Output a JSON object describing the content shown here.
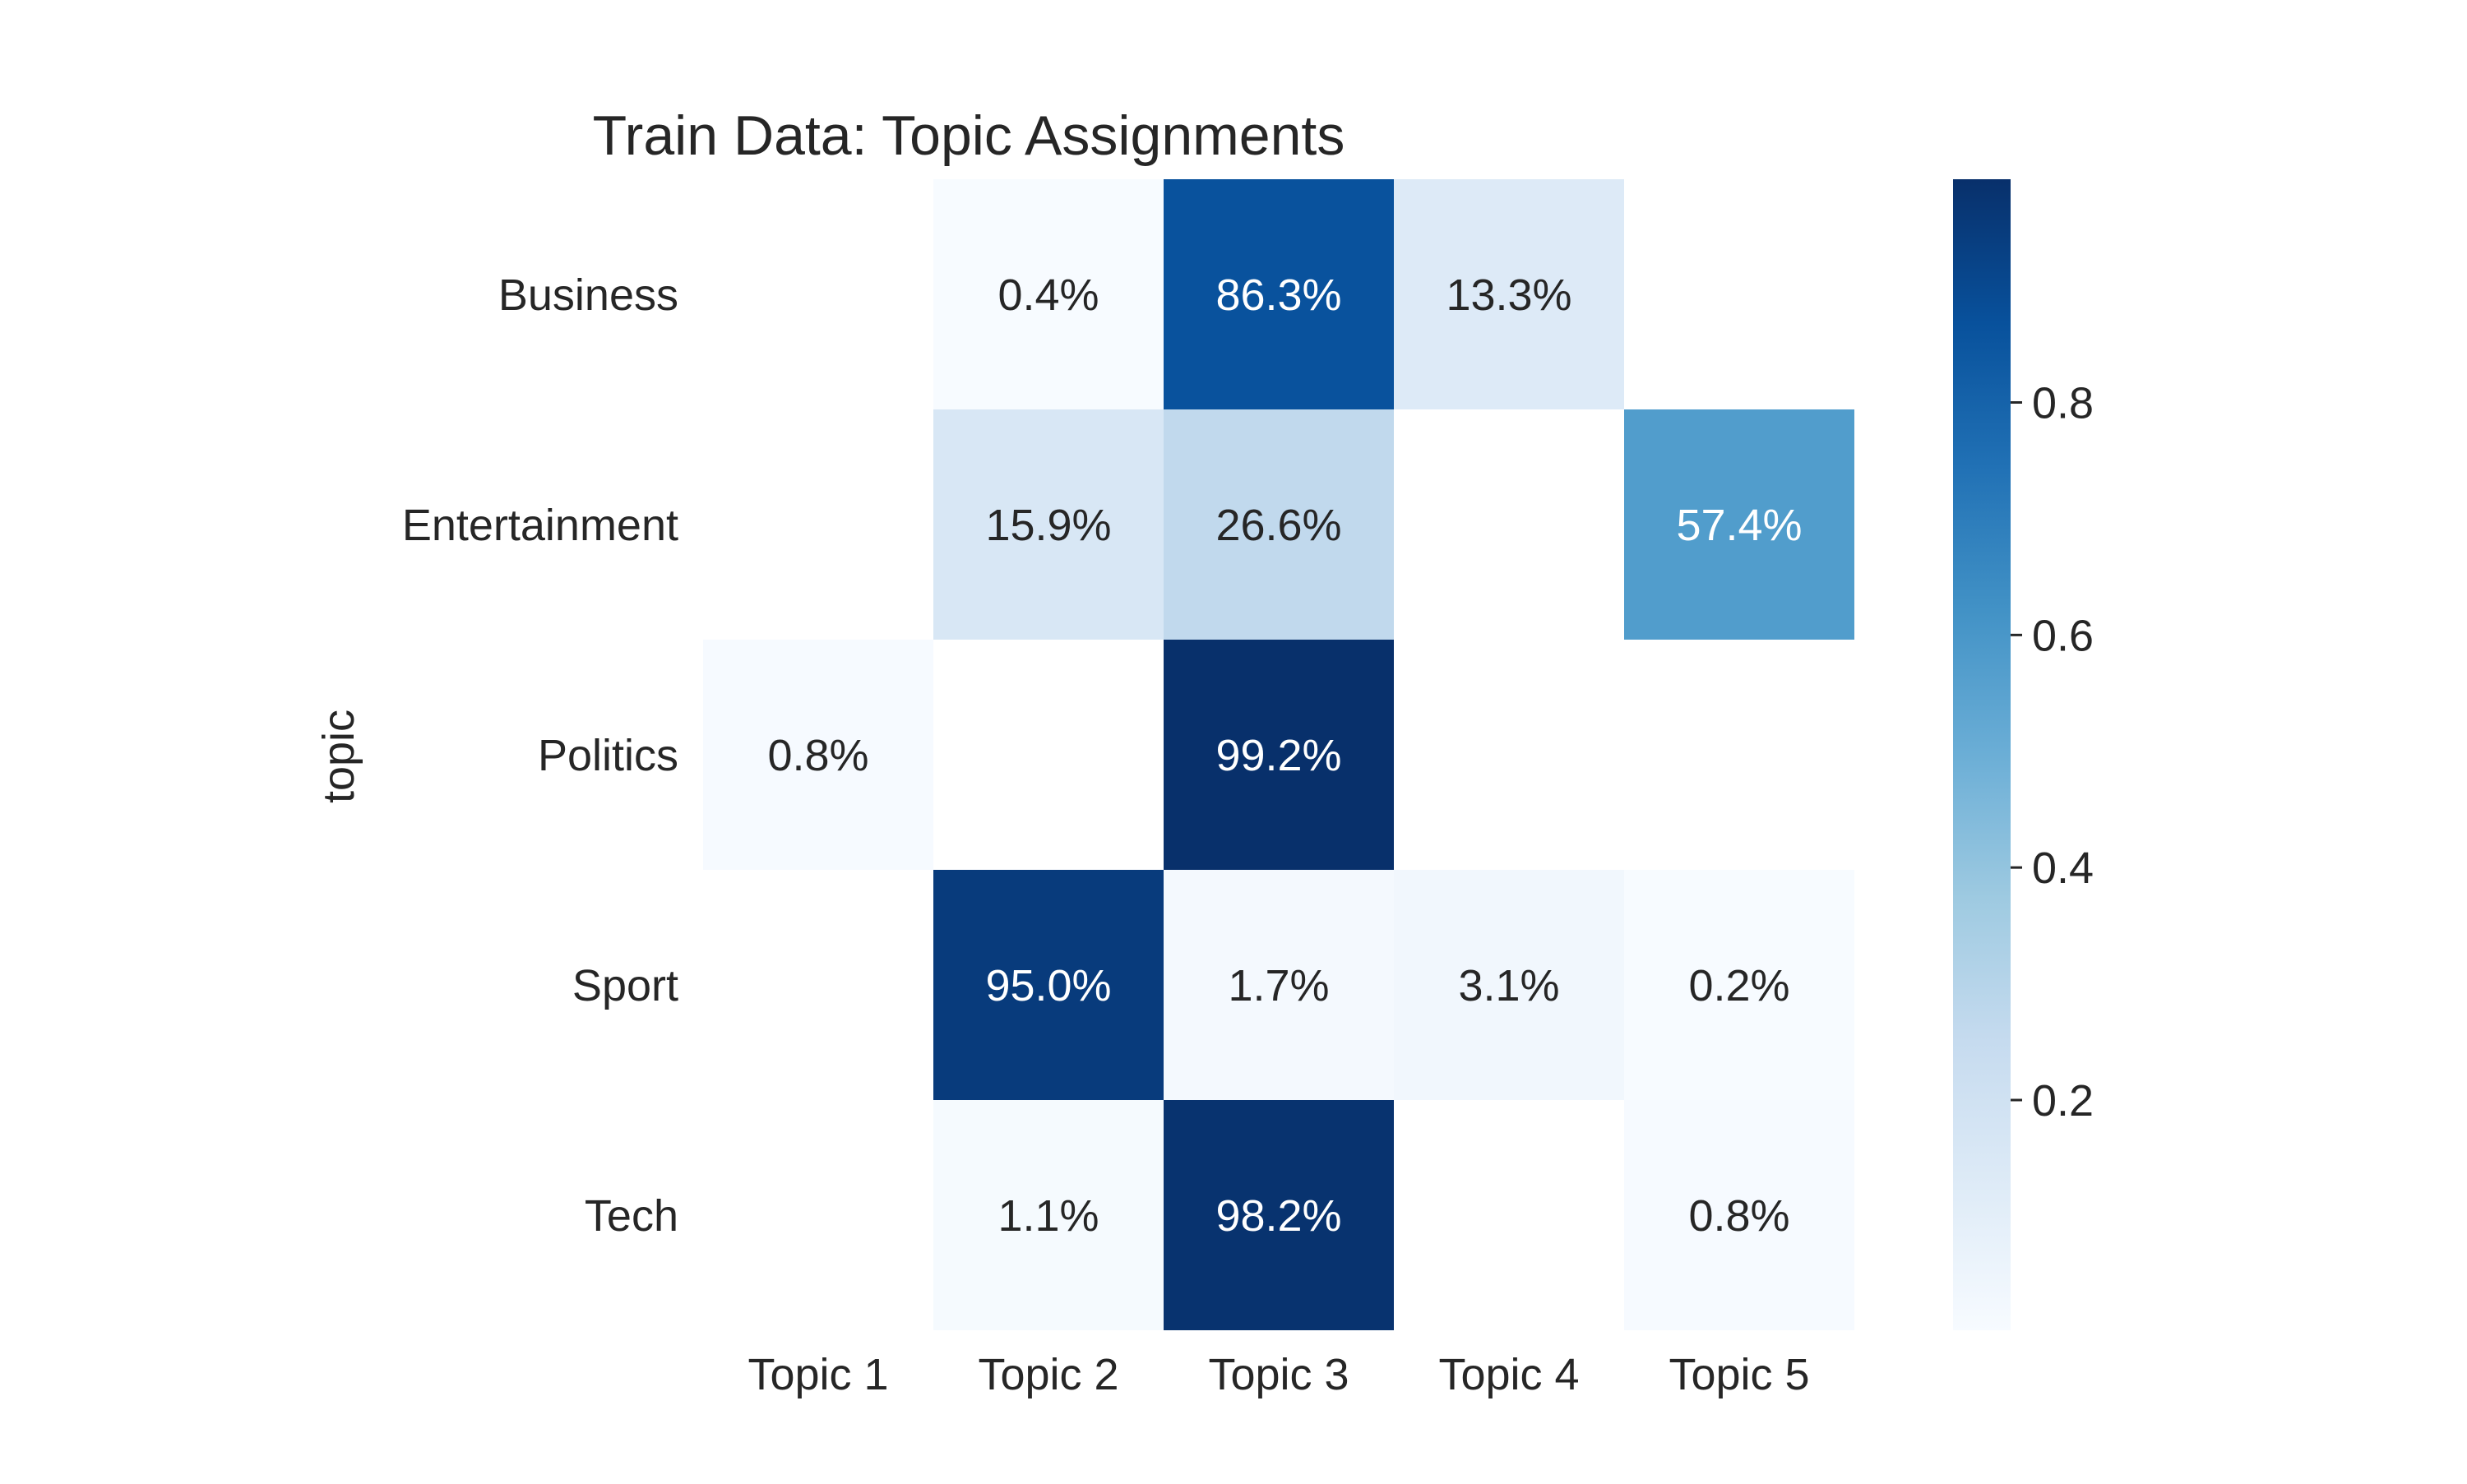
{
  "chart_data": {
    "type": "heatmap",
    "title": "Train Data: Topic Assignments",
    "xlabel": "",
    "ylabel": "topic",
    "x_categories": [
      "Topic 1",
      "Topic 2",
      "Topic 3",
      "Topic 4",
      "Topic 5"
    ],
    "y_categories": [
      "Business",
      "Entertainment",
      "Politics",
      "Sport",
      "Tech"
    ],
    "values": [
      [
        null,
        0.004,
        0.863,
        0.133,
        null
      ],
      [
        null,
        0.159,
        0.266,
        null,
        0.574
      ],
      [
        0.008,
        null,
        0.992,
        null,
        null
      ],
      [
        null,
        0.95,
        0.017,
        0.031,
        0.002
      ],
      [
        null,
        0.011,
        0.982,
        null,
        0.008
      ]
    ],
    "cell_labels": [
      [
        "",
        "0.4%",
        "86.3%",
        "13.3%",
        ""
      ],
      [
        "",
        "15.9%",
        "26.6%",
        "",
        "57.4%"
      ],
      [
        "0.8%",
        "",
        "99.2%",
        "",
        ""
      ],
      [
        "",
        "95.0%",
        "1.7%",
        "3.1%",
        "0.2%"
      ],
      [
        "",
        "1.1%",
        "98.2%",
        "",
        "0.8%"
      ]
    ],
    "colormap": "Blues",
    "colorbar": {
      "range": [
        0.002,
        0.992
      ],
      "ticks": [
        0.2,
        0.4,
        0.6,
        0.8
      ],
      "tick_labels": [
        "0.2",
        "0.4",
        "0.6",
        "0.8"
      ]
    },
    "grid": false
  }
}
